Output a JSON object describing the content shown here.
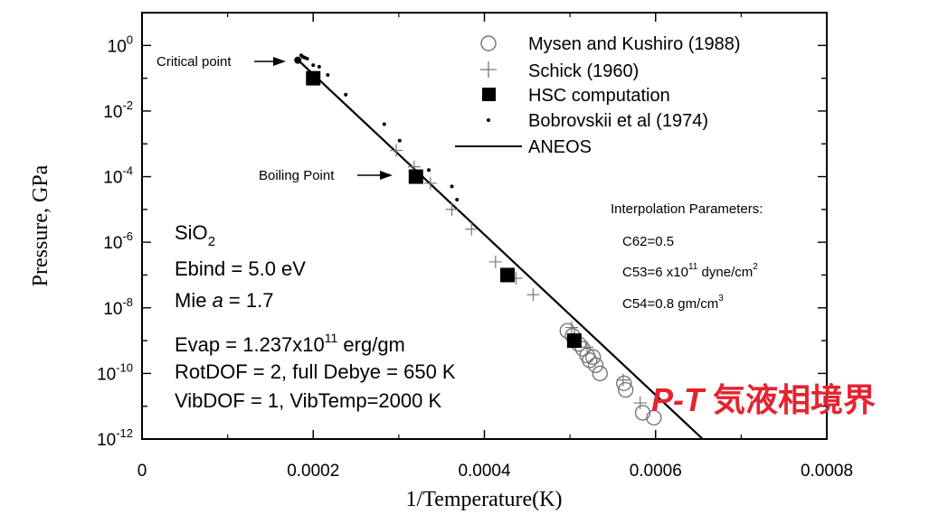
{
  "chart_data": {
    "type": "scatter",
    "xlabel": "1/Temperature(K)",
    "ylabel": "Pressure, GPa",
    "xlim": [
      0,
      0.0008
    ],
    "ylim_log10": [
      -12,
      1
    ],
    "y_scale": "log",
    "x_ticks": [
      {
        "value": 0,
        "label": "0"
      },
      {
        "value": 0.0002,
        "label": "0.0002"
      },
      {
        "value": 0.0004,
        "label": "0.0004"
      },
      {
        "value": 0.0006,
        "label": "0.0006"
      },
      {
        "value": 0.0008,
        "label": "0.0008"
      }
    ],
    "y_ticks": [
      {
        "exp": 0,
        "base": "10",
        "sup": "0"
      },
      {
        "exp": -2,
        "base": "10",
        "sup": "-2"
      },
      {
        "exp": -4,
        "base": "10",
        "sup": "-4"
      },
      {
        "exp": -6,
        "base": "10",
        "sup": "-6"
      },
      {
        "exp": -8,
        "base": "10",
        "sup": "-8"
      },
      {
        "exp": -10,
        "base": "10",
        "sup": "-10"
      },
      {
        "exp": -12,
        "base": "10",
        "sup": "-12"
      }
    ],
    "legend_position": "top-right",
    "series": [
      {
        "name": "Mysen and Kushiro (1988)",
        "marker": "open-circle",
        "points": [
          [
            0.000497,
            -8.7
          ],
          [
            0.000503,
            -8.85
          ],
          [
            0.00051,
            -9.1
          ],
          [
            0.000515,
            -9.25
          ],
          [
            0.00052,
            -9.45
          ],
          [
            0.000523,
            -9.6
          ],
          [
            0.000527,
            -9.5
          ],
          [
            0.00053,
            -9.75
          ],
          [
            0.000535,
            -10.0
          ],
          [
            0.000563,
            -10.3
          ],
          [
            0.000565,
            -10.5
          ],
          [
            0.000585,
            -11.2
          ],
          [
            0.000598,
            -11.35
          ]
        ]
      },
      {
        "name": "Schick (1960)",
        "marker": "plus",
        "points": [
          [
            0.000297,
            -3.2
          ],
          [
            0.000318,
            -3.7
          ],
          [
            0.000337,
            -4.2
          ],
          [
            0.000362,
            -5.0
          ],
          [
            0.000385,
            -5.6
          ],
          [
            0.000413,
            -6.6
          ],
          [
            0.000437,
            -7.1
          ],
          [
            0.000457,
            -7.6
          ],
          [
            0.000502,
            -8.6
          ],
          [
            0.00052,
            -9.2
          ],
          [
            0.000562,
            -10.2
          ],
          [
            0.000582,
            -10.9
          ]
        ]
      },
      {
        "name": "HSC computation",
        "marker": "filled-square",
        "points": [
          [
            0.0002,
            -1.0
          ],
          [
            0.00032,
            -4.0
          ],
          [
            0.000427,
            -7.0
          ],
          [
            0.000505,
            -9.0
          ]
        ]
      },
      {
        "name": "Bobrovskii et al (1974)",
        "marker": "dot",
        "points": [
          [
            0.000186,
            -0.3
          ],
          [
            0.000188,
            -0.35
          ],
          [
            0.00019,
            -0.37
          ],
          [
            0.000193,
            -0.4
          ],
          [
            0.0002,
            -0.6
          ],
          [
            0.000207,
            -0.65
          ],
          [
            0.000217,
            -0.9
          ],
          [
            0.000238,
            -1.5
          ],
          [
            0.000283,
            -2.4
          ],
          [
            0.000301,
            -2.9
          ],
          [
            0.000335,
            -3.8
          ],
          [
            0.000362,
            -4.3
          ],
          [
            0.000368,
            -4.7
          ]
        ]
      },
      {
        "name": "ANEOS",
        "marker": "line",
        "points": [
          [
            0.0001845,
            -0.5
          ],
          [
            0.000655,
            -12.0
          ]
        ]
      }
    ],
    "critical_point": [
      0.000182,
      -0.45
    ],
    "annotations": {
      "critical_point": "Critical point",
      "boiling_point": "Boiling Point"
    }
  },
  "params_left": {
    "species_base": "SiO",
    "species_sub": "2",
    "ebind": "Ebind = 5.0 eV",
    "mie_pre": "Mie ",
    "mie_var": "a",
    "mie_post": " = 1.7",
    "evap_pre": "Evap = 1.237x10",
    "evap_sup": "11",
    "evap_post": " erg/gm",
    "rotdof": "RotDOF = 2, full Debye = 650 K",
    "vibdof": "VibDOF = 1, VibTemp=2000 K"
  },
  "params_right": {
    "title": "Interpolation Parameters:",
    "c62": "C62=0.5",
    "c53_pre": "C53=6 x10",
    "c53_sup": "11",
    "c53_mid": " dyne/cm",
    "c53_sup2": "2",
    "c54_pre": "C54=0.8 gm/cm",
    "c54_sup": "3"
  },
  "overlay": {
    "italic": "P-T",
    "text": " 気液相境界",
    "color": "#e5232f"
  }
}
